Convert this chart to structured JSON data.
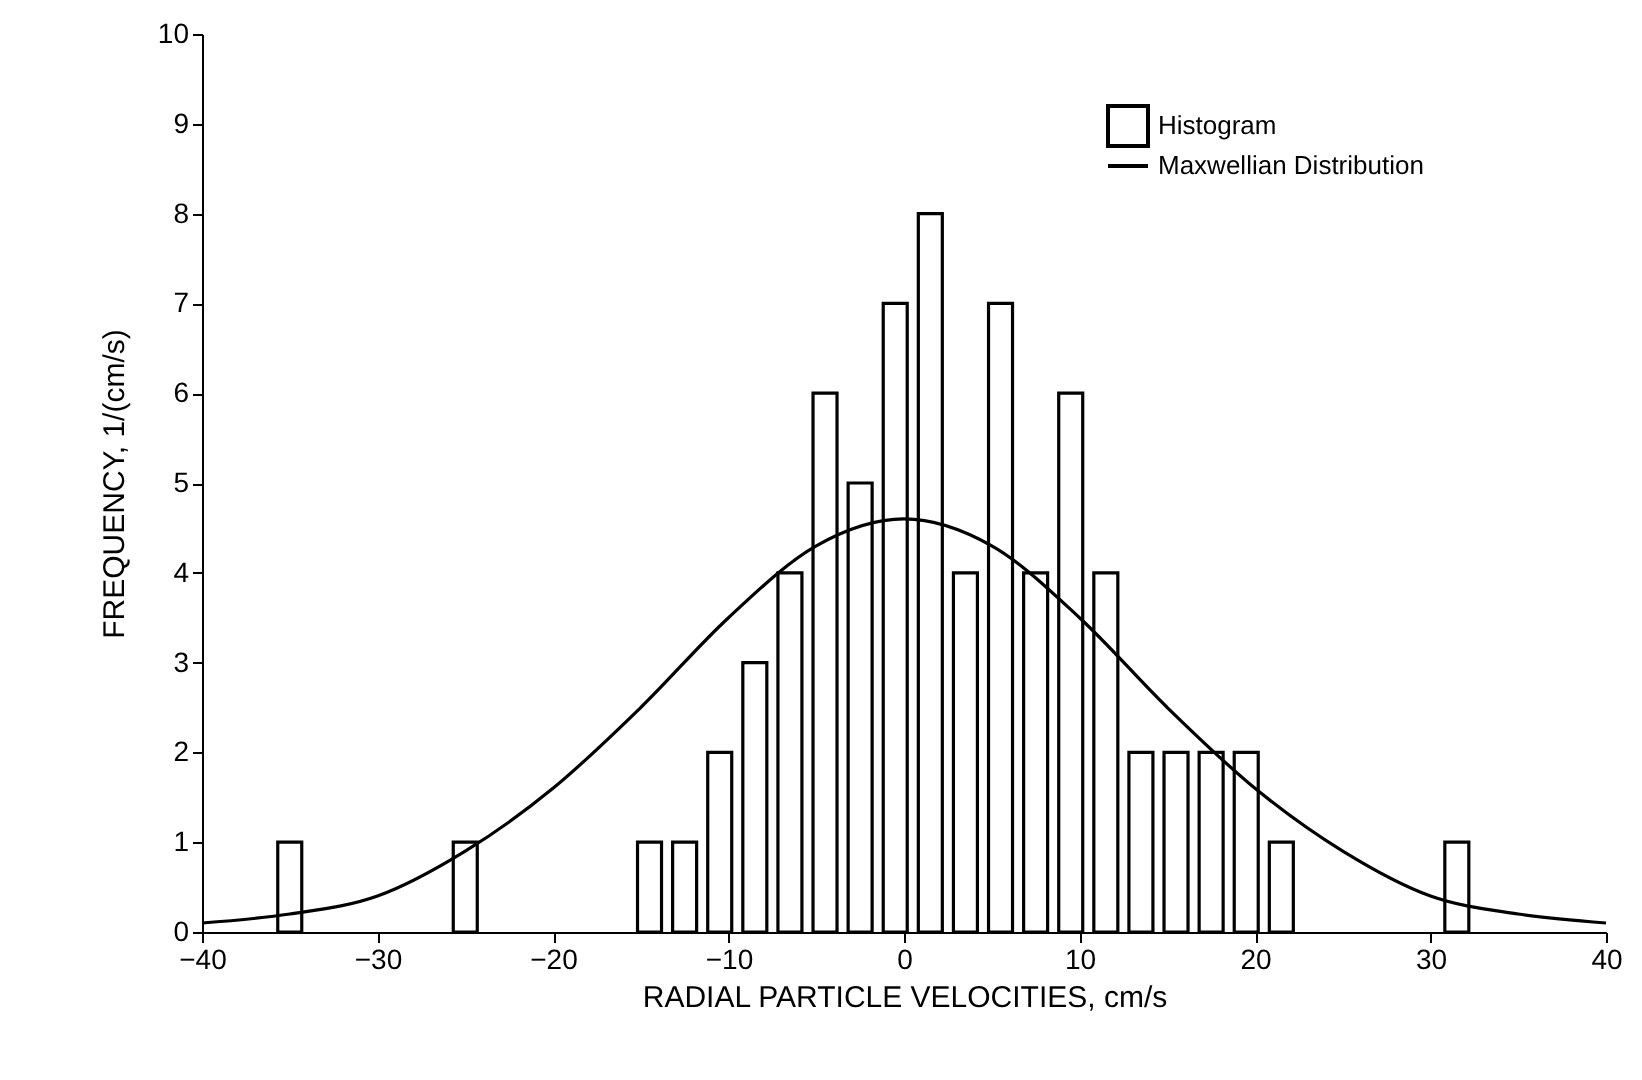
{
  "chart_data": {
    "type": "bar",
    "xlabel": "RADIAL PARTICLE VELOCITIES, cm/s",
    "ylabel": "FREQUENCY, 1/(cm/s)",
    "x": [
      -35,
      -25,
      -14.5,
      -12.5,
      -10.5,
      -8.5,
      -6.5,
      -4.5,
      -2.5,
      -0.5,
      1.5,
      3.5,
      5.5,
      7.5,
      9.5,
      11.5,
      13.5,
      15.5,
      17.5,
      19.5,
      21.5,
      31.5
    ],
    "series": [
      {
        "name": "Histogram",
        "color": "#000000",
        "values": [
          1,
          1,
          1,
          1,
          2,
          3,
          4,
          6,
          5,
          7,
          8,
          4,
          7,
          4,
          6,
          4,
          2,
          2,
          2,
          2,
          1,
          1
        ]
      },
      {
        "name": "Maxwellian Distribution",
        "type": "line",
        "color": "#000000",
        "x": [
          -40,
          -35,
          -30,
          -25,
          -20,
          -15,
          -10,
          -5,
          0,
          5,
          10,
          15,
          20,
          25,
          30,
          35,
          40
        ],
        "values": [
          0.1,
          0.2,
          0.4,
          0.9,
          1.6,
          2.5,
          3.5,
          4.3,
          4.6,
          4.3,
          3.5,
          2.5,
          1.6,
          0.9,
          0.4,
          0.2,
          0.1
        ]
      }
    ],
    "xlim": [
      -40,
      40
    ],
    "xticks": [
      -40,
      -30,
      -20,
      -10,
      0,
      10,
      20,
      30,
      40
    ],
    "ylim": [
      0,
      10
    ],
    "yticks": [
      0,
      1,
      2,
      3,
      4,
      5,
      6,
      7,
      8,
      9,
      10
    ],
    "legend": "top right",
    "line_style": "solid"
  }
}
